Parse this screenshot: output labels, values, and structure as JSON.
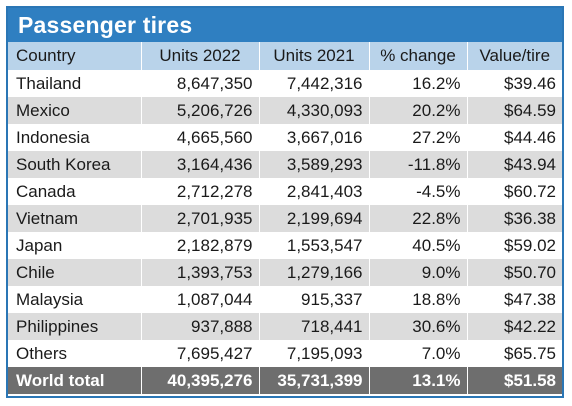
{
  "title": "Passenger tires",
  "columns": [
    "Country",
    "Units 2022",
    "Units 2021",
    "% change",
    "Value/tire"
  ],
  "rows": [
    {
      "country": "Thailand",
      "units_2022": "8,647,350",
      "units_2021": "7,442,316",
      "change": "16.2%",
      "value": "$39.46"
    },
    {
      "country": "Mexico",
      "units_2022": "5,206,726",
      "units_2021": "4,330,093",
      "change": "20.2%",
      "value": "$64.59"
    },
    {
      "country": "Indonesia",
      "units_2022": "4,665,560",
      "units_2021": "3,667,016",
      "change": "27.2%",
      "value": "$44.46"
    },
    {
      "country": "South Korea",
      "units_2022": "3,164,436",
      "units_2021": "3,589,293",
      "change": "-11.8%",
      "value": "$43.94"
    },
    {
      "country": "Canada",
      "units_2022": "2,712,278",
      "units_2021": "2,841,403",
      "change": "-4.5%",
      "value": "$60.72"
    },
    {
      "country": "Vietnam",
      "units_2022": "2,701,935",
      "units_2021": "2,199,694",
      "change": "22.8%",
      "value": "$36.38"
    },
    {
      "country": "Japan",
      "units_2022": "2,182,879",
      "units_2021": "1,553,547",
      "change": "40.5%",
      "value": "$59.02"
    },
    {
      "country": "Chile",
      "units_2022": "1,393,753",
      "units_2021": "1,279,166",
      "change": "9.0%",
      "value": "$50.70"
    },
    {
      "country": "Malaysia",
      "units_2022": "1,087,044",
      "units_2021": "915,337",
      "change": "18.8%",
      "value": "$47.38"
    },
    {
      "country": "Philippines",
      "units_2022": "937,888",
      "units_2021": "718,441",
      "change": "30.6%",
      "value": "$42.22"
    },
    {
      "country": "Others",
      "units_2022": "7,695,427",
      "units_2021": "7,195,093",
      "change": "7.0%",
      "value": "$65.75"
    }
  ],
  "total": {
    "country": "World total",
    "units_2022": "40,395,276",
    "units_2021": "35,731,399",
    "change": "13.1%",
    "value": "$51.58"
  },
  "colors": {
    "title_bg": "#2f7fc1",
    "header_bg": "#b9d3ea",
    "stripe": "#dcdcdc",
    "total_bg": "#6e6e6e"
  }
}
